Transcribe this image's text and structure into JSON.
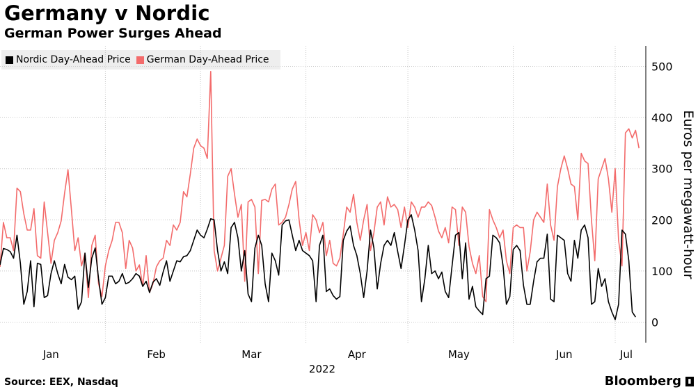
{
  "title": "Germany v Nordic",
  "subtitle": "German Power Surges Ahead",
  "source": "Source: EEX, Nasdaq",
  "brand": "Bloomberg",
  "legend": {
    "nordic": "Nordic Day-Ahead Price",
    "german": "German Day-Ahead Price"
  },
  "colors": {
    "nordic": "#000000",
    "german": "#f36b6b",
    "grid": "#c8c8c8"
  },
  "chart_data": {
    "type": "line",
    "title": "Germany v Nordic",
    "subtitle": "German Power Surges Ahead",
    "ylabel": "Euros per megawatt-hour",
    "xlabel": "2022",
    "ylim": [
      -40,
      540
    ],
    "yticks": [
      0,
      100,
      200,
      300,
      400,
      500
    ],
    "xlim": [
      0,
      190
    ],
    "x_unit": "day of 2022 (Jan 1 = 0)",
    "month_ticks": [
      {
        "label": "Jan",
        "day": 15
      },
      {
        "label": "Feb",
        "day": 46
      },
      {
        "label": "Mar",
        "day": 74
      },
      {
        "label": "Apr",
        "day": 105
      },
      {
        "label": "May",
        "day": 135
      },
      {
        "label": "Jun",
        "day": 166
      },
      {
        "label": "Jul",
        "day": 196
      }
    ],
    "month_boundaries": [
      31,
      59,
      90,
      120,
      151,
      181
    ],
    "series": [
      {
        "name": "Nordic Day-Ahead Price",
        "color": "#000000",
        "values": [
          112,
          144,
          142,
          138,
          125,
          170,
          115,
          35,
          60,
          120,
          30,
          115,
          113,
          48,
          52,
          95,
          120,
          95,
          75,
          113,
          88,
          83,
          90,
          25,
          40,
          135,
          68,
          125,
          145,
          85,
          35,
          48,
          90,
          90,
          75,
          80,
          95,
          75,
          78,
          85,
          95,
          90,
          70,
          80,
          58,
          78,
          85,
          72,
          98,
          120,
          80,
          100,
          120,
          118,
          128,
          130,
          140,
          160,
          180,
          170,
          165,
          182,
          202,
          200,
          140,
          100,
          118,
          95,
          185,
          195,
          165,
          100,
          140,
          55,
          40,
          145,
          170,
          150,
          75,
          40,
          135,
          120,
          92,
          190,
          198,
          200,
          170,
          140,
          160,
          140,
          135,
          130,
          120,
          40,
          150,
          170,
          60,
          65,
          52,
          45,
          50,
          160,
          178,
          188,
          150,
          130,
          95,
          48,
          100,
          180,
          145,
          65,
          115,
          150,
          160,
          150,
          175,
          138,
          105,
          150,
          200,
          210,
          180,
          140,
          40,
          85,
          150,
          95,
          100,
          85,
          98,
          60,
          48,
          110,
          170,
          175,
          85,
          155,
          45,
          70,
          30,
          22,
          15,
          85,
          90,
          170,
          165,
          155,
          110,
          35,
          50,
          142,
          150,
          140,
          72,
          35,
          35,
          80,
          118,
          125,
          125,
          172,
          45,
          40,
          170,
          165,
          160,
          95,
          80,
          160,
          125,
          180,
          190,
          165,
          35,
          40,
          105,
          70,
          85,
          40,
          20,
          5,
          35,
          180,
          172,
          120,
          20,
          10
        ]
      },
      {
        "name": "German Day-Ahead Price",
        "color": "#f36b6b",
        "values": [
          108,
          195,
          165,
          165,
          140,
          262,
          255,
          212,
          180,
          180,
          222,
          130,
          125,
          235,
          175,
          115,
          160,
          175,
          198,
          252,
          298,
          220,
          140,
          165,
          110,
          135,
          48,
          150,
          170,
          75,
          50,
          110,
          140,
          160,
          195,
          195,
          175,
          105,
          160,
          145,
          100,
          112,
          70,
          130,
          58,
          75,
          108,
          120,
          125,
          160,
          150,
          190,
          180,
          195,
          255,
          245,
          290,
          340,
          358,
          345,
          340,
          320,
          490,
          140,
          100,
          125,
          150,
          285,
          300,
          250,
          205,
          230,
          80,
          235,
          240,
          225,
          95,
          238,
          240,
          235,
          260,
          270,
          190,
          195,
          205,
          230,
          260,
          275,
          200,
          150,
          175,
          140,
          210,
          200,
          175,
          195,
          130,
          160,
          115,
          110,
          125,
          172,
          225,
          215,
          250,
          195,
          160,
          200,
          230,
          140,
          175,
          225,
          235,
          190,
          245,
          225,
          230,
          220,
          185,
          225,
          185,
          235,
          225,
          205,
          225,
          225,
          235,
          228,
          205,
          178,
          165,
          185,
          155,
          225,
          220,
          150,
          225,
          215,
          148,
          115,
          95,
          130,
          50,
          40,
          220,
          200,
          185,
          165,
          180,
          120,
          95,
          185,
          190,
          185,
          185,
          100,
          138,
          200,
          215,
          205,
          195,
          270,
          190,
          160,
          265,
          300,
          325,
          300,
          270,
          265,
          200,
          330,
          315,
          310,
          200,
          120,
          280,
          300,
          320,
          280,
          215,
          300,
          160,
          110,
          370,
          378,
          360,
          375,
          340
        ]
      }
    ]
  }
}
